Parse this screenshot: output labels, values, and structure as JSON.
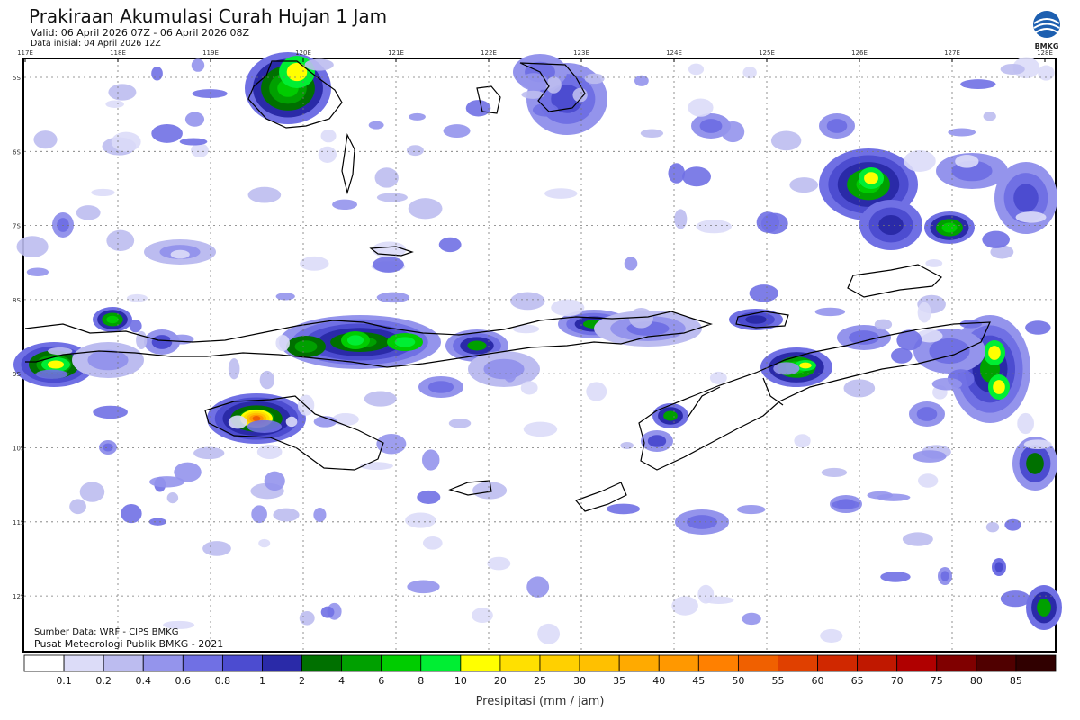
{
  "header": {
    "title": "Prakiraan Akumulasi Curah Hujan 1 Jam",
    "valid": "Valid: 06 April 2026 07Z - 06 April 2026 08Z",
    "init": "Data inisial: 04 April 2026 12Z"
  },
  "logo": {
    "text": "BMKG",
    "icon": "bmkg-logo-icon"
  },
  "axes": {
    "lon_labels": [
      "117E",
      "118E",
      "119E",
      "120E",
      "121E",
      "122E",
      "123E",
      "124E",
      "125E",
      "126E",
      "127E",
      "128E"
    ],
    "lat_labels": [
      "5S",
      "6S",
      "7S",
      "8S",
      "9S",
      "10S",
      "11S",
      "12S"
    ]
  },
  "footer": {
    "source": "Sumber Data: WRF - CIPS BMKG",
    "publisher": "Pusat Meteorologi Publik BMKG - 2021"
  },
  "legend": {
    "unit": "Presipitasi (mm / jam)",
    "labels": [
      "0.1",
      "0.2",
      "0.4",
      "0.6",
      "0.8",
      "1",
      "2",
      "4",
      "6",
      "8",
      "10",
      "20",
      "25",
      "30",
      "35",
      "40",
      "45",
      "50",
      "55",
      "60",
      "65",
      "70",
      "75",
      "80",
      "85"
    ],
    "colors": [
      "#ffffff",
      "#dcdcf8",
      "#bcbcf0",
      "#9494ec",
      "#7070e4",
      "#4c4cd0",
      "#2a2aa8",
      "#007000",
      "#00a000",
      "#00cc00",
      "#00ee33",
      "#ffff00",
      "#ffe000",
      "#ffd000",
      "#ffc000",
      "#ffaa00",
      "#ff9800",
      "#ff8000",
      "#f06000",
      "#e04000",
      "#d02800",
      "#c01800",
      "#b00000",
      "#800000",
      "#500000",
      "#300000"
    ]
  }
}
